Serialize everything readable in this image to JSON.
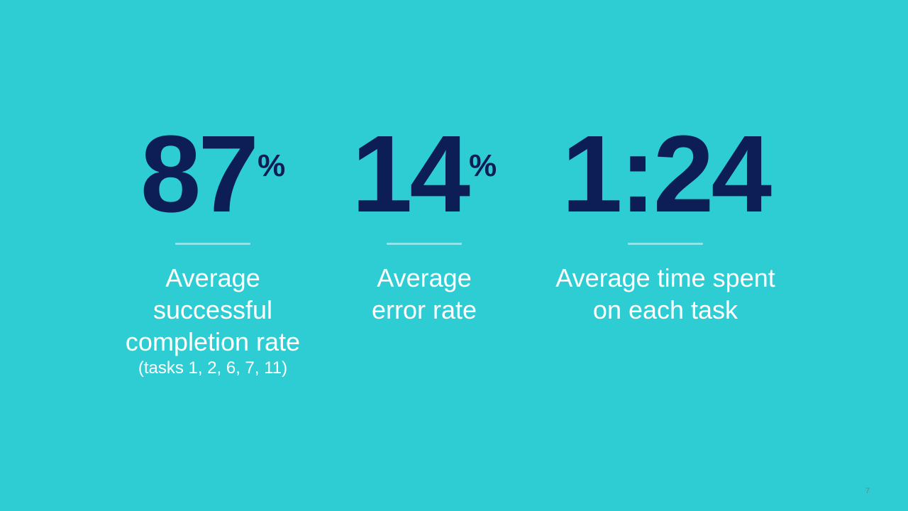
{
  "colors": {
    "background": "#2ECDD4",
    "figure": "#0C1E55",
    "text": "#FFFFFF",
    "rule": "#8DE6EB",
    "page_number": "#5A8E96"
  },
  "stats": [
    {
      "value": "87",
      "unit": "%",
      "label_lines": [
        "Average",
        "successful",
        "completion rate"
      ],
      "note": "(tasks 1, 2, 6, 7, 11)"
    },
    {
      "value": "14",
      "unit": "%",
      "label_lines": [
        "Average",
        "error rate"
      ]
    },
    {
      "value": "1:24",
      "label_lines": [
        "Average time spent",
        "on each task"
      ]
    }
  ],
  "page_number": "7"
}
